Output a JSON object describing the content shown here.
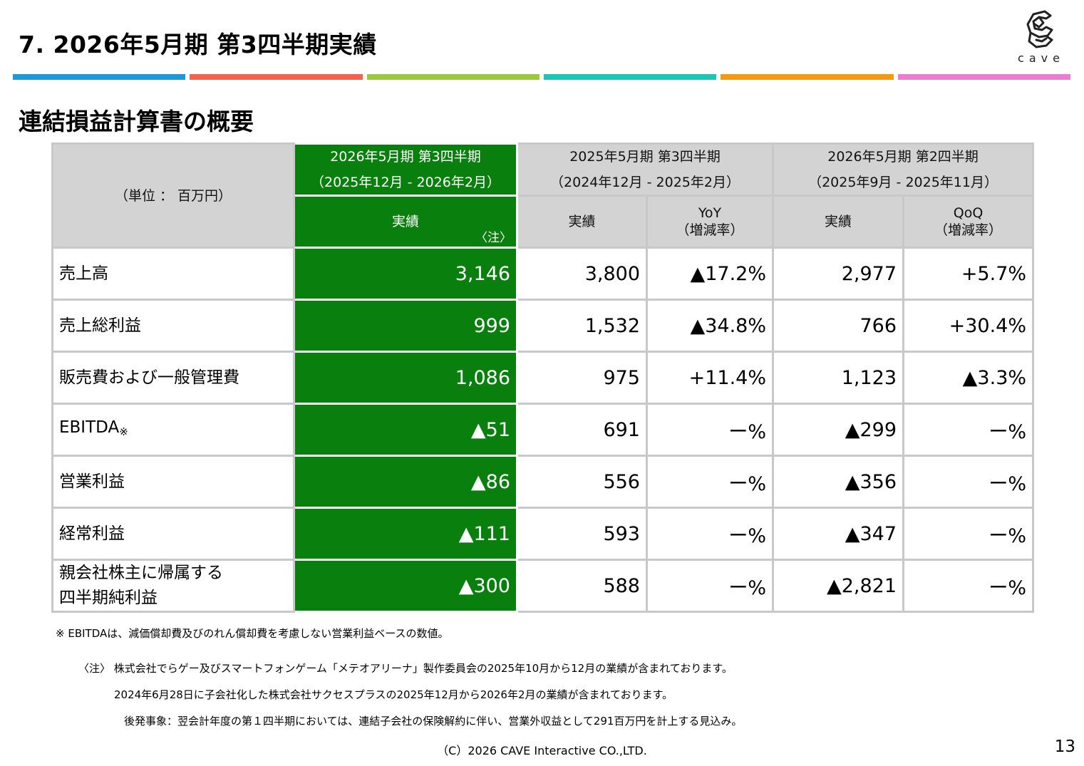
{
  "header": {
    "title": "7.  2026年5月期  第3四半期実績",
    "logo_text": "cave",
    "color_bar": [
      "#1c99d6",
      "#f2624f",
      "#9bc93e",
      "#1bc7b4",
      "#f39a12",
      "#ea7dd0"
    ]
  },
  "section_title": "連結損益計算書の概要",
  "table": {
    "unit": "（単位 ： 百万円）",
    "periods": [
      {
        "label": "2026年5月期  第3四半期",
        "range": "（2025年12月 - 2026年2月）"
      },
      {
        "label": "2025年5月期  第3四半期",
        "range": "（2024年12月 - 2025年2月）"
      },
      {
        "label": "2026年5月期  第2四半期",
        "range": "（2025年9月 - 2025年11月）"
      }
    ],
    "sub_headers": {
      "actual": "実績",
      "note_mark": "〈注〉",
      "yoy": "YoY",
      "yoy_sub": "（増減率）",
      "qoq": "QoQ",
      "qoq_sub": "（増減率）"
    },
    "rows": [
      {
        "label": "売上高",
        "current": "3,146",
        "prev_year": "3,800",
        "yoy": "▲17.2%",
        "prev_q": "2,977",
        "qoq": "+5.7%"
      },
      {
        "label": "売上総利益",
        "current": "999",
        "prev_year": "1,532",
        "yoy": "▲34.8%",
        "prev_q": "766",
        "qoq": "+30.4%"
      },
      {
        "label": "販売費および一般管理費",
        "current": "1,086",
        "prev_year": "975",
        "yoy": "+11.4%",
        "prev_q": "1,123",
        "qoq": "▲3.3%"
      },
      {
        "label": "EBITDA",
        "label_mark": "※",
        "current": "▲51",
        "prev_year": "691",
        "yoy": "ー%",
        "prev_q": "▲299",
        "qoq": "ー%"
      },
      {
        "label": "営業利益",
        "current": "▲86",
        "prev_year": "556",
        "yoy": "ー%",
        "prev_q": "▲356",
        "qoq": "ー%"
      },
      {
        "label": "経常利益",
        "current": "▲111",
        "prev_year": "593",
        "yoy": "ー%",
        "prev_q": "▲347",
        "qoq": "ー%"
      },
      {
        "label": "親会社株主に帰属する",
        "label2": "四半期純利益",
        "current": "▲300",
        "prev_year": "588",
        "yoy": "ー%",
        "prev_q": "▲2,821",
        "qoq": "ー%"
      }
    ]
  },
  "footnotes": {
    "ebitda": "※ EBITDAは、減価償却費及びのれん償却費を考慮しない営業利益ベースの数値。",
    "note_line1": "〈注〉 株式会社でらゲー及びスマートフォンゲーム「メテオアリーナ」製作委員会の2025年10月から12月の業績が含まれております。",
    "note_line2": "2024年6月28日に子会社化した株式会社サクセスプラスの2025年12月から2026年2月の業績が含まれております。",
    "subsequent": "後発事象：翌会計年度の第１四半期においては、連結子会社の保険解約に伴い、営業外収益として291百万円を計上する見込み。"
  },
  "footer": {
    "copyright": "（C）2026 CAVE Interactive CO.,LTD.",
    "page_number": "13"
  }
}
